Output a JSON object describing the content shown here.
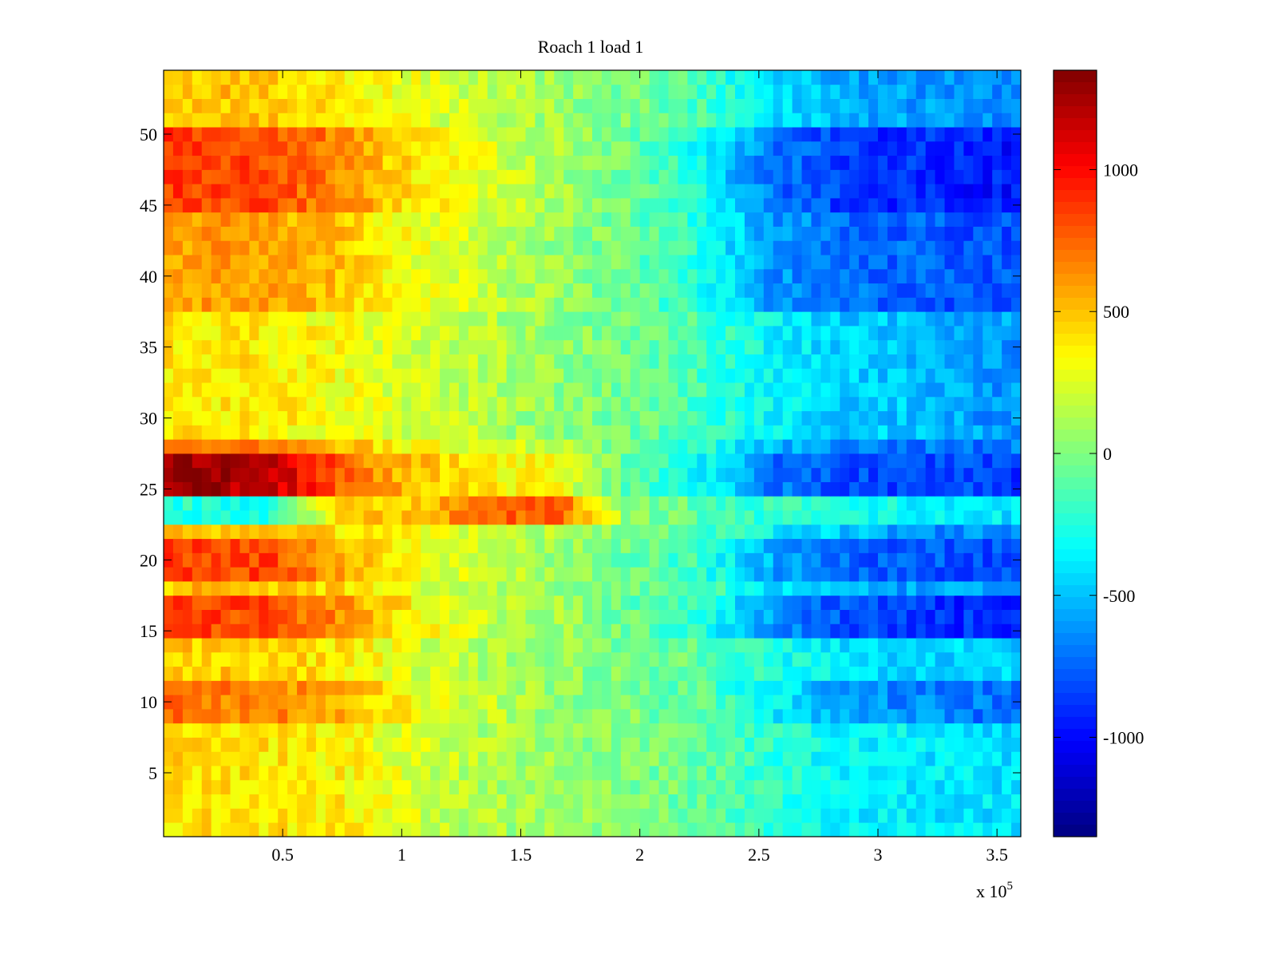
{
  "chart_data": {
    "type": "heatmap",
    "title": "Roach 1 load 1",
    "xlabel": "",
    "ylabel": "",
    "x_exponent_label": "x 10",
    "x_exponent_power": "5",
    "xlim": [
      0,
      3.6
    ],
    "ylim": [
      0.5,
      54.5
    ],
    "x_ticks": [
      0.5,
      1,
      1.5,
      2,
      2.5,
      3,
      3.5
    ],
    "x_tick_labels": [
      "0.5",
      "1",
      "1.5",
      "2",
      "2.5",
      "3",
      "3.5"
    ],
    "y_ticks": [
      5,
      10,
      15,
      20,
      25,
      30,
      35,
      40,
      45,
      50
    ],
    "y_tick_labels": [
      "5",
      "10",
      "15",
      "20",
      "25",
      "30",
      "35",
      "40",
      "45",
      "50"
    ],
    "colormap": "jet",
    "clim": [
      -1350,
      1350
    ],
    "colorbar_ticks": [
      1000,
      500,
      0,
      -500,
      -1000
    ],
    "colorbar_tick_labels": [
      "1000",
      "500",
      "0",
      "-500",
      "-1000"
    ],
    "rows": 54,
    "columns_sampled": 12,
    "x_column_centers": [
      0.15,
      0.45,
      0.75,
      1.05,
      1.35,
      1.65,
      1.95,
      2.25,
      2.55,
      2.85,
      3.15,
      3.45
    ],
    "row_profiles": [
      {
        "rows": [
          1,
          8
        ],
        "values": [
          420,
          400,
          360,
          230,
          120,
          60,
          0,
          -60,
          -220,
          -350,
          -380,
          -400
        ]
      },
      {
        "rows": [
          9,
          11
        ],
        "values": [
          700,
          680,
          540,
          320,
          180,
          60,
          0,
          -100,
          -350,
          -600,
          -650,
          -700
        ]
      },
      {
        "rows": [
          12,
          14
        ],
        "values": [
          480,
          450,
          400,
          240,
          130,
          50,
          -20,
          -80,
          -260,
          -400,
          -430,
          -450
        ]
      },
      {
        "rows": [
          15,
          17
        ],
        "values": [
          850,
          820,
          620,
          350,
          200,
          80,
          -60,
          -250,
          -600,
          -800,
          -880,
          -900
        ]
      },
      {
        "rows": [
          18,
          18
        ],
        "values": [
          500,
          480,
          420,
          260,
          140,
          60,
          -40,
          -120,
          -400,
          -560,
          -600,
          -620
        ]
      },
      {
        "rows": [
          19,
          21
        ],
        "values": [
          850,
          830,
          550,
          320,
          200,
          80,
          -50,
          -200,
          -550,
          -750,
          -780,
          -800
        ]
      },
      {
        "rows": [
          22,
          22
        ],
        "values": [
          450,
          440,
          420,
          300,
          200,
          120,
          20,
          -100,
          -350,
          -500,
          -600,
          -650
        ]
      },
      {
        "rows": [
          23,
          24
        ],
        "values": [
          -250,
          -250,
          450,
          500,
          700,
          800,
          50,
          -100,
          -200,
          -280,
          -320,
          -400
        ]
      },
      {
        "rows": [
          25,
          27
        ],
        "values": [
          1250,
          1200,
          750,
          500,
          380,
          300,
          -100,
          -300,
          -700,
          -800,
          -820,
          -850
        ]
      },
      {
        "rows": [
          28,
          28
        ],
        "values": [
          750,
          720,
          520,
          320,
          250,
          200,
          -60,
          -220,
          -500,
          -620,
          -680,
          -700
        ]
      },
      {
        "rows": [
          29,
          37
        ],
        "values": [
          400,
          380,
          320,
          220,
          140,
          40,
          -40,
          -150,
          -350,
          -450,
          -500,
          -600
        ]
      },
      {
        "rows": [
          38,
          44
        ],
        "values": [
          600,
          580,
          480,
          300,
          180,
          60,
          -50,
          -250,
          -600,
          -700,
          -760,
          -800
        ]
      },
      {
        "rows": [
          45,
          50
        ],
        "values": [
          850,
          820,
          650,
          400,
          250,
          100,
          -50,
          -300,
          -700,
          -850,
          -900,
          -950
        ]
      },
      {
        "rows": [
          51,
          54
        ],
        "values": [
          500,
          480,
          400,
          280,
          180,
          80,
          -30,
          -150,
          -400,
          -550,
          -600,
          -650
        ]
      }
    ]
  },
  "colors": {
    "axis": "#000000",
    "background": "#ffffff"
  }
}
